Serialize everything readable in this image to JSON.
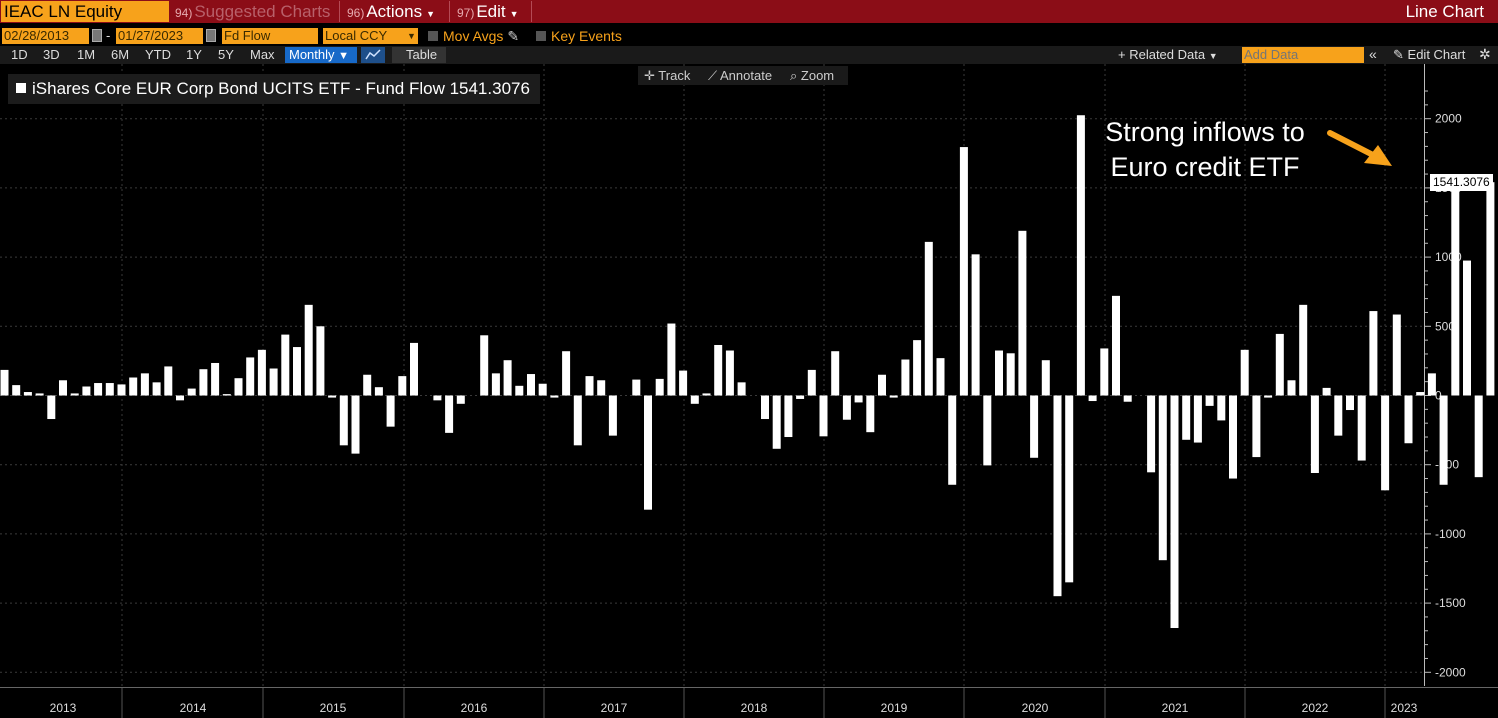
{
  "header": {
    "ticker": "IEAC LN Equity",
    "suggested_num": "94)",
    "suggested": "Suggested Charts",
    "actions_num": "96)",
    "actions": "Actions",
    "edit_num": "97)",
    "edit": "Edit",
    "chart_type": "Line Chart"
  },
  "controls": {
    "start_date": "02/28/2013",
    "end_date": "01/27/2023",
    "field": "Fd Flow",
    "currency": "Local CCY",
    "mov_avgs": "Mov Avgs",
    "key_events": "Key Events",
    "periods": [
      "1D",
      "3D",
      "1M",
      "6M",
      "YTD",
      "1Y",
      "5Y",
      "Max"
    ],
    "frequency": "Monthly",
    "table": "Table",
    "related_data": "+ Related Data",
    "add_data_placeholder": "Add Data",
    "edit_chart": "Edit Chart"
  },
  "tools": {
    "track": "Track",
    "annotate": "Annotate",
    "zoom": "Zoom"
  },
  "legend": "iShares Core EUR Corp Bond UCITS ETF - Fund Flow 1541.3076",
  "annotation": "Strong inflows to Euro credit ETF",
  "last_value_label": "1541.3076",
  "colors": {
    "accent": "#f7a21b",
    "header_bg": "#8b0d17",
    "bar": "#ffffff",
    "arrow": "#f7a21b"
  },
  "chart_data": {
    "type": "bar",
    "title": "",
    "series": [
      {
        "name": "iShares Core EUR Corp Bond UCITS ETF - Fund Flow",
        "values": [
          185,
          75,
          25,
          15,
          -170,
          110,
          15,
          65,
          90,
          90,
          80,
          130,
          160,
          95,
          210,
          -35,
          50,
          190,
          235,
          10,
          125,
          275,
          330,
          195,
          440,
          350,
          655,
          500,
          -15,
          -360,
          -420,
          150,
          60,
          -225,
          140,
          380,
          0,
          -35,
          -270,
          -60,
          0,
          435,
          160,
          255,
          70,
          155,
          85,
          -15,
          320,
          -360,
          140,
          110,
          -290,
          0,
          115,
          -825,
          120,
          520,
          180,
          -60,
          15,
          365,
          325,
          95,
          0,
          -170,
          -385,
          -300,
          -25,
          185,
          -295,
          320,
          -175,
          -50,
          -265,
          150,
          -15,
          260,
          400,
          1110,
          270,
          -645,
          1795,
          1020,
          -505,
          325,
          305,
          1190,
          -450,
          255,
          -1450,
          -1350,
          2025,
          -40,
          340,
          720,
          -45,
          0,
          -555,
          -1190,
          -1680,
          -320,
          -340,
          -75,
          -180,
          -600,
          330,
          -445,
          -15,
          445,
          110,
          655,
          -560,
          55,
          -290,
          -105,
          -470,
          610,
          -685,
          585,
          -345,
          25,
          160,
          -645,
          1600,
          975,
          -590,
          1541.3076
        ]
      }
    ],
    "xlabel": "",
    "ylabel": "",
    "x_ticks": [
      "2013",
      "2014",
      "2015",
      "2016",
      "2017",
      "2018",
      "2019",
      "2020",
      "2021",
      "2022",
      "2023"
    ],
    "y_ticks": [
      -2000,
      -1500,
      -1000,
      -500,
      0,
      500,
      1000,
      1500,
      2000
    ],
    "ylim": [
      -2050,
      2300
    ],
    "last_value": 1541.3076,
    "grid": true,
    "legend": "top-left"
  }
}
